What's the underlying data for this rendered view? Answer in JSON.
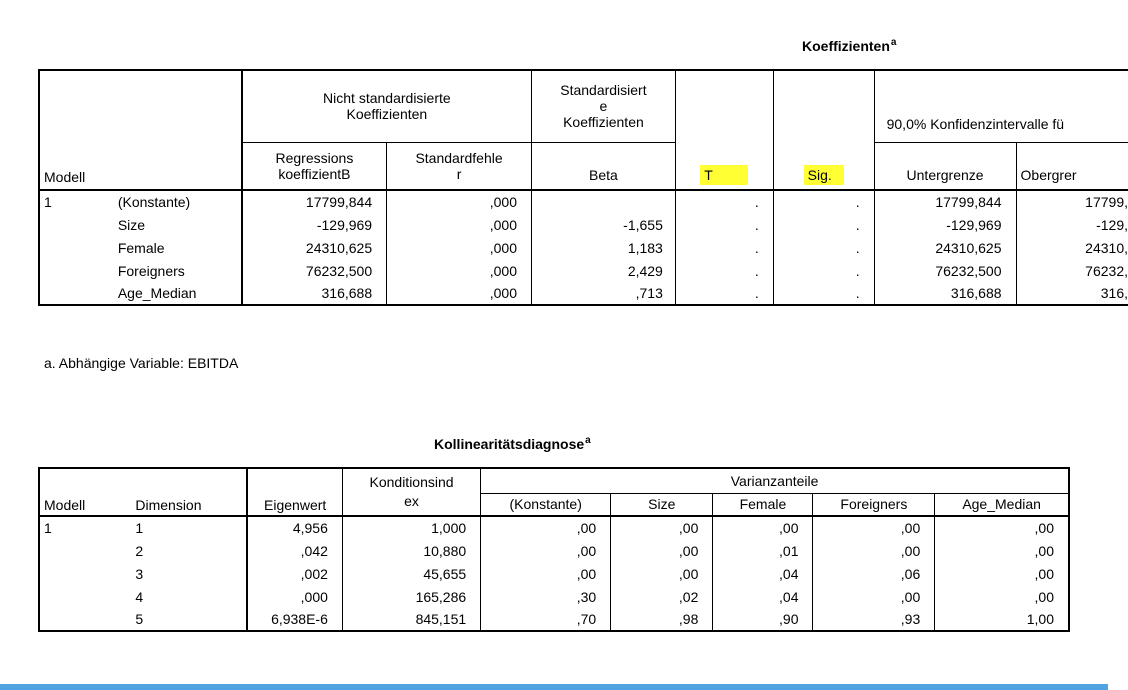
{
  "coefficients": {
    "title": "Koeffizienten",
    "title_sup": "a",
    "header": {
      "unstd": "Nicht standardisierte Koeffizienten",
      "std": "Standardisierte Koeffizienten",
      "std_l1": "Standardisiert",
      "std_l2": "e",
      "std_l3": "Koeffizienten",
      "ci": "90,0% Konfidenzintervalle fü",
      "model": "Modell",
      "reg_l1": "Regressions",
      "reg_l2": "koeffizientB",
      "se_l1": "Standardfehle",
      "se_l2": "r",
      "beta": "Beta",
      "t": "T",
      "sig": "Sig.",
      "lower": "Untergrenze",
      "upper": "Obergrer"
    },
    "model_no": "1",
    "rows": [
      {
        "var": "(Konstante)",
        "b": "17799,844",
        "se": ",000",
        "beta": "",
        "t": ".",
        "sig": ".",
        "lo": "17799,844",
        "hi": "17799,"
      },
      {
        "var": "Size",
        "b": "-129,969",
        "se": ",000",
        "beta": "-1,655",
        "t": ".",
        "sig": ".",
        "lo": "-129,969",
        "hi": "-129,"
      },
      {
        "var": "Female",
        "b": "24310,625",
        "se": ",000",
        "beta": "1,183",
        "t": ".",
        "sig": ".",
        "lo": "24310,625",
        "hi": "24310,"
      },
      {
        "var": "Foreigners",
        "b": "76232,500",
        "se": ",000",
        "beta": "2,429",
        "t": ".",
        "sig": ".",
        "lo": "76232,500",
        "hi": "76232,"
      },
      {
        "var": "Age_Median",
        "b": "316,688",
        "se": ",000",
        "beta": ",713",
        "t": ".",
        "sig": ".",
        "lo": "316,688",
        "hi": "316,"
      }
    ],
    "footnote": "a. Abhängige Variable: EBITDA"
  },
  "collinearity": {
    "title": "Kollinearitätsdiagnose",
    "title_sup": "a",
    "header": {
      "model": "Modell",
      "dimension": "Dimension",
      "eigen": "Eigenwert",
      "cond_l1": "Konditionsind",
      "cond_l2": "ex",
      "var_shares": "Varianzanteile",
      "const": "(Konstante)",
      "size": "Size",
      "female": "Female",
      "foreigners": "Foreigners",
      "age": "Age_Median"
    },
    "model_no": "1",
    "rows": [
      {
        "dim": "1",
        "eigen": "4,956",
        "cond": "1,000",
        "const": ",00",
        "size": ",00",
        "female": ",00",
        "foreigners": ",00",
        "age": ",00"
      },
      {
        "dim": "2",
        "eigen": ",042",
        "cond": "10,880",
        "const": ",00",
        "size": ",00",
        "female": ",01",
        "foreigners": ",00",
        "age": ",00"
      },
      {
        "dim": "3",
        "eigen": ",002",
        "cond": "45,655",
        "const": ",00",
        "size": ",00",
        "female": ",04",
        "foreigners": ",06",
        "age": ",00"
      },
      {
        "dim": "4",
        "eigen": ",000",
        "cond": "165,286",
        "const": ",30",
        "size": ",02",
        "female": ",04",
        "foreigners": ",00",
        "age": ",00"
      },
      {
        "dim": "5",
        "eigen": "6,938E-6",
        "cond": "845,151",
        "const": ",70",
        "size": ",98",
        "female": ",90",
        "foreigners": ",93",
        "age": "1,00"
      }
    ]
  },
  "colors": {
    "highlight": "#ffff33",
    "bottom_bar": "#4fa3e0"
  }
}
